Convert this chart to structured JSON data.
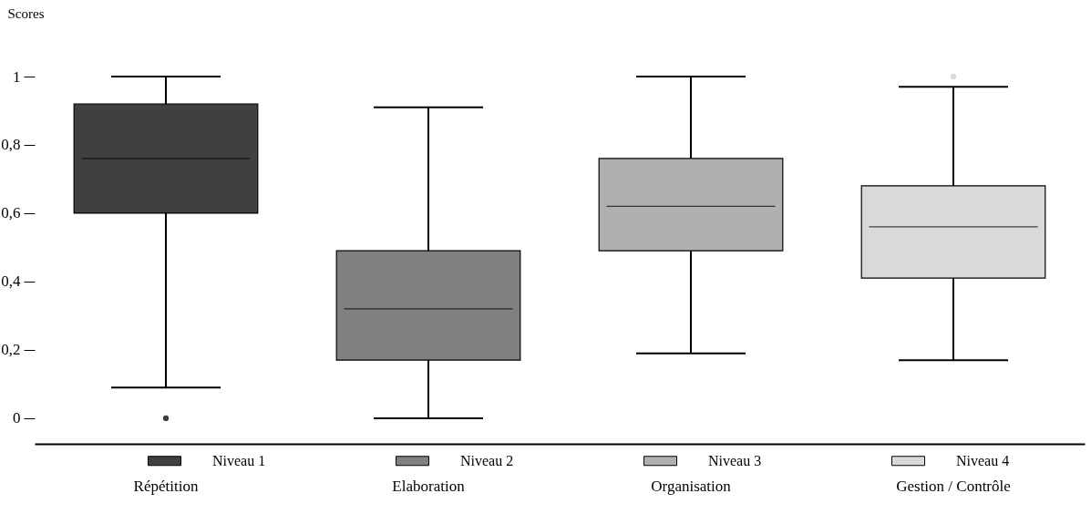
{
  "chart_data": {
    "type": "box",
    "ylabel": "Scores",
    "categories": [
      "Répétition",
      "Elaboration",
      "Organisation",
      "Gestion / Contrôle"
    ],
    "ylim": [
      -0.075,
      1
    ],
    "yticks": [
      0,
      {
        "value": 0.2,
        "label": "0,2"
      },
      {
        "value": 0.4,
        "label": "0,4"
      },
      {
        "value": 0.6,
        "label": "0,6"
      },
      {
        "value": 0.8,
        "label": "0,8"
      },
      1
    ],
    "legend": "bottom",
    "series": [
      {
        "name": "Niveau 1",
        "color": "#404040",
        "boxes": [
          {
            "low": 0.09,
            "q1": 0.6,
            "median": 0.76,
            "q3": 0.92,
            "high": 1.0,
            "outliers": [
              0
            ]
          },
          null,
          null,
          null
        ]
      },
      {
        "name": "Niveau 2",
        "color": "#808080",
        "boxes": [
          null,
          {
            "low": 0,
            "q1": 0.17,
            "median": 0.32,
            "q3": 0.49,
            "high": 0.91
          },
          null,
          null
        ]
      },
      {
        "name": "Niveau 3",
        "color": "#b0b0b0",
        "boxes": [
          null,
          null,
          {
            "low": 0.19,
            "q1": 0.49,
            "median": 0.62,
            "q3": 0.76,
            "high": 1.0
          },
          null
        ]
      },
      {
        "name": "Niveau 4",
        "color": "#d9d9d9",
        "boxes": [
          null,
          null,
          null,
          {
            "low": 0.17,
            "q1": 0.41,
            "median": 0.56,
            "q3": 0.68,
            "high": 0.97,
            "outliers": [
              1.0
            ]
          }
        ]
      }
    ]
  }
}
